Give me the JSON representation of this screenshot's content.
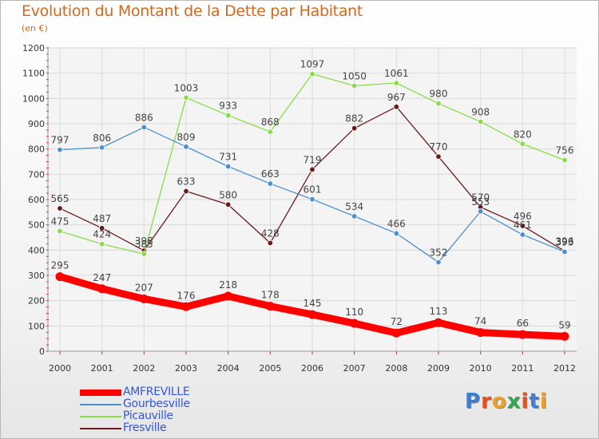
{
  "title": "Evolution du Montant de la Dette par Habitant",
  "subtitle": "(en €)",
  "logo": {
    "letters": [
      "P",
      "r",
      "o",
      "x",
      "i",
      "t",
      "i"
    ],
    "colors": [
      "#3a7fd5",
      "#e8501e",
      "#f0a020",
      "#2fa84f",
      "#e8501e",
      "#3a7fd5",
      "#f0a020"
    ]
  },
  "chart_data": {
    "type": "line",
    "categories": [
      "2000",
      "2001",
      "2002",
      "2003",
      "2004",
      "2005",
      "2006",
      "2007",
      "2008",
      "2009",
      "2010",
      "2011",
      "2012"
    ],
    "ylim": [
      0,
      1200
    ],
    "yticks": [
      "0",
      "100",
      "200",
      "300",
      "400",
      "500",
      "600",
      "700",
      "800",
      "900",
      "1000",
      "1100",
      "1200"
    ],
    "grid": true,
    "legend_position": "bottom-left",
    "series": [
      {
        "name": "AMFREVILLE",
        "color": "#ff0000",
        "values": [
          295,
          247,
          207,
          176,
          218,
          178,
          145,
          110,
          72,
          113,
          74,
          66,
          59
        ],
        "labels": [
          "295",
          "247",
          "207",
          "176",
          "218",
          "178",
          "145",
          "110",
          "72",
          "113",
          "74",
          "66",
          "59"
        ]
      },
      {
        "name": "Gourbesville",
        "color": "#4a90d0",
        "values": [
          797,
          806,
          886,
          809,
          731,
          663,
          601,
          534,
          466,
          352,
          553,
          461,
          393
        ],
        "labels": [
          "797",
          "806",
          "886",
          "809",
          "731",
          "663",
          "601",
          "534",
          "466",
          "352",
          "553",
          "461",
          "393"
        ]
      },
      {
        "name": "Picauville",
        "color": "#88dd44",
        "values": [
          475,
          424,
          385,
          1003,
          933,
          868,
          1097,
          1050,
          1061,
          980,
          908,
          820,
          756
        ],
        "labels": [
          "475",
          "424",
          "385",
          "1003",
          "933",
          "868",
          "1097",
          "1050",
          "1061",
          "980",
          "908",
          "820",
          "756"
        ]
      },
      {
        "name": "Fresville",
        "color": "#6b1a1a",
        "values": [
          565,
          487,
          398,
          633,
          580,
          428,
          719,
          882,
          967,
          770,
          570,
          496,
          396
        ],
        "labels": [
          "565",
          "487",
          "398",
          "633",
          "580",
          "428",
          "719",
          "882",
          "967",
          "770",
          "570",
          "496",
          "396"
        ]
      }
    ]
  }
}
